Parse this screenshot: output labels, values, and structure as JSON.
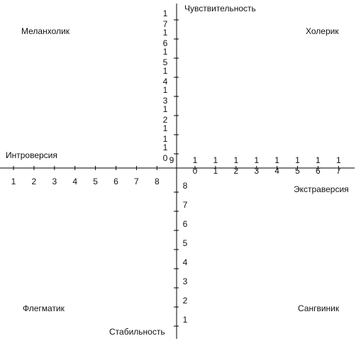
{
  "axes": {
    "top": "Чувствительность",
    "bottom": "Стабильность",
    "left": "Интроверсия",
    "right": "Экстраверсия"
  },
  "quadrants": {
    "top_left": "Меланхолик",
    "top_right": "Холерик",
    "bottom_left": "Флегматик",
    "bottom_right": "Сангвиник"
  },
  "x_ticks_left": [
    1,
    2,
    3,
    4,
    5,
    6,
    7,
    8,
    9
  ],
  "x_ticks_right": [
    10,
    11,
    12,
    13,
    14,
    15,
    16,
    17
  ],
  "y_ticks_top": [
    10,
    11,
    12,
    13,
    14,
    15,
    16,
    17
  ],
  "y_ticks_bottom": [
    1,
    2,
    3,
    4,
    5,
    6,
    7,
    8
  ]
}
